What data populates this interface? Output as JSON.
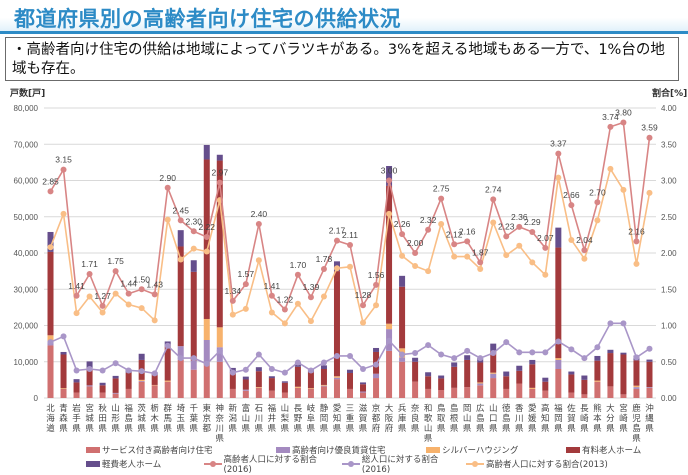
{
  "title": "都道府県別の高齢者向け住宅の供給状況",
  "note": "・高齢者向け住宅の供給は地域によってバラツキがある。3%を超える地域もある一方で、1%台の地域も存在。",
  "chart_data": {
    "type": "bar",
    "stacked": true,
    "left_axis": {
      "label": "戸数[戸]",
      "ylim": [
        0,
        80000
      ],
      "ticks": [
        "0",
        "10,000",
        "20,000",
        "30,000",
        "40,000",
        "50,000",
        "60,000",
        "70,000",
        "80,000"
      ]
    },
    "right_axis": {
      "label": "割合[%]",
      "ylim": [
        0,
        4
      ],
      "ticks": [
        "0.00",
        "0.50",
        "1.00",
        "1.50",
        "2.00",
        "2.50",
        "3.00",
        "3.50",
        "4.00"
      ]
    },
    "grid": true,
    "legend_position": "bottom",
    "categories": [
      "北海道",
      "青森県",
      "岩手県",
      "宮城県",
      "秋田県",
      "山形県",
      "福島県",
      "茨城県",
      "栃木県",
      "群馬県",
      "埼玉県",
      "千葉県",
      "東京都",
      "神奈川県",
      "新潟県",
      "富山県",
      "石川県",
      "福井県",
      "山梨県",
      "長野県",
      "岐阜県",
      "静岡県",
      "愛知県",
      "三重県",
      "滋賀県",
      "京都府",
      "大阪府",
      "兵庫県",
      "奈良県",
      "和歌山県",
      "鳥取県",
      "島根県",
      "岡山県",
      "広島県",
      "山口県",
      "徳島県",
      "香川県",
      "愛媛県",
      "高知県",
      "福岡県",
      "佐賀県",
      "長崎県",
      "熊本県",
      "大分県",
      "宮崎県",
      "鹿児島県",
      "沖縄県"
    ],
    "series": [
      {
        "name": "サービス付き高齢者向け住宅",
        "kind": "bar",
        "color": "#d07070",
        "values": [
          14500,
          2500,
          1500,
          3200,
          1500,
          1200,
          2500,
          4500,
          3500,
          4500,
          10500,
          7800,
          10000,
          10000,
          2500,
          2000,
          2800,
          2000,
          1500,
          2800,
          2500,
          3200,
          5200,
          2500,
          1500,
          5500,
          13000,
          10000,
          4500,
          2500,
          2200,
          2800,
          3000,
          3500,
          5500,
          2500,
          4000,
          2500,
          2000,
          8000,
          1500,
          1000,
          4500,
          3200,
          1000,
          2500,
          2800
        ]
      },
      {
        "name": "高齢者向け優良賃貸住宅",
        "kind": "bar",
        "color": "#a48ac0",
        "values": [
          1200,
          0,
          0,
          300,
          0,
          200,
          0,
          200,
          0,
          0,
          3800,
          2500,
          6000,
          4000,
          0,
          300,
          0,
          0,
          0,
          0,
          0,
          200,
          400,
          0,
          300,
          1200,
          6000,
          1200,
          0,
          0,
          0,
          0,
          0,
          500,
          1200,
          0,
          0,
          0,
          0,
          2500,
          0,
          0,
          0,
          0,
          0,
          500,
          200
        ]
      },
      {
        "name": "シルバーハウジング",
        "kind": "bar",
        "color": "#f7b26c",
        "values": [
          1600,
          200,
          0,
          0,
          0,
          0,
          0,
          300,
          100,
          300,
          0,
          0,
          5800,
          5500,
          0,
          0,
          200,
          0,
          0,
          300,
          200,
          200,
          400,
          0,
          0,
          0,
          1500,
          2500,
          0,
          0,
          0,
          0,
          0,
          300,
          300,
          0,
          0,
          300,
          0,
          500,
          0,
          0,
          300,
          0,
          0,
          400,
          0
        ]
      },
      {
        "name": "有料老人ホーム",
        "kind": "bar",
        "color": "#a33a3c",
        "values": [
          23000,
          9300,
          2800,
          4800,
          2000,
          4000,
          4500,
          5500,
          2700,
          9500,
          27500,
          24500,
          44000,
          46000,
          4500,
          2800,
          4400,
          3500,
          2700,
          5500,
          4400,
          4400,
          29000,
          4400,
          2000,
          6000,
          38000,
          17000,
          5500,
          3500,
          3200,
          5800,
          7500,
          5500,
          6000,
          3500,
          3500,
          6500,
          2500,
          30500,
          5000,
          4000,
          5500,
          9200,
          11000,
          7000,
          7000
        ]
      },
      {
        "name": "軽費老人ホーム",
        "kind": "bar",
        "color": "#654e8c",
        "values": [
          5500,
          700,
          900,
          1800,
          700,
          700,
          900,
          1700,
          800,
          1300,
          4500,
          3200,
          4000,
          1600,
          1300,
          800,
          1100,
          500,
          400,
          1200,
          1000,
          1000,
          2700,
          900,
          500,
          1100,
          5500,
          3000,
          1100,
          1100,
          800,
          1200,
          1300,
          1200,
          2000,
          1300,
          1400,
          1200,
          1100,
          5500,
          800,
          1200,
          1300,
          900,
          500,
          1300,
          600
        ]
      },
      {
        "name": "高齢者人口に対する割合(2016)",
        "kind": "line",
        "color": "#d88585",
        "labels": true,
        "values": [
          2.85,
          3.15,
          1.41,
          1.71,
          1.27,
          1.75,
          1.44,
          1.5,
          1.43,
          2.9,
          2.45,
          2.3,
          2.22,
          2.97,
          1.34,
          1.57,
          2.4,
          1.41,
          1.22,
          1.7,
          1.39,
          1.78,
          2.17,
          2.11,
          1.28,
          1.56,
          3.0,
          2.26,
          2.0,
          2.32,
          2.75,
          2.12,
          2.16,
          1.87,
          2.74,
          2.23,
          2.36,
          2.29,
          2.07,
          3.37,
          2.66,
          2.04,
          2.7,
          3.74,
          3.8,
          2.16,
          3.59
        ]
      },
      {
        "name": "総人口に対する割合(2016)",
        "kind": "line",
        "color": "#a996c8",
        "labels": false,
        "values": [
          0.77,
          0.85,
          0.38,
          0.4,
          0.38,
          0.48,
          0.38,
          0.37,
          0.34,
          0.72,
          0.55,
          0.55,
          0.47,
          0.65,
          0.35,
          0.39,
          0.6,
          0.4,
          0.35,
          0.49,
          0.38,
          0.49,
          0.58,
          0.58,
          0.4,
          0.46,
          0.79,
          0.6,
          0.62,
          0.73,
          0.6,
          0.55,
          0.65,
          0.55,
          0.62,
          0.77,
          0.63,
          0.63,
          0.63,
          0.78,
          0.67,
          0.55,
          0.7,
          1.03,
          1.03,
          0.56,
          0.68
        ]
      },
      {
        "name": "高齢者人口に対する割合(2013)",
        "kind": "line",
        "color": "#f9be86",
        "labels": false,
        "values": [
          2.08,
          2.54,
          1.17,
          1.4,
          1.18,
          1.44,
          1.29,
          1.24,
          1.07,
          2.46,
          1.91,
          2.06,
          2.02,
          2.73,
          1.15,
          1.23,
          1.9,
          1.18,
          1.03,
          1.3,
          1.06,
          1.4,
          1.79,
          1.81,
          1.04,
          1.28,
          2.54,
          1.96,
          1.82,
          1.75,
          2.4,
          1.95,
          1.95,
          1.78,
          2.42,
          1.97,
          2.1,
          1.87,
          1.7,
          3.04,
          2.18,
          1.92,
          2.45,
          3.16,
          2.87,
          1.85,
          2.83
        ]
      }
    ],
    "annotations": {
      "right_axis_zero_label": "0.00"
    }
  }
}
